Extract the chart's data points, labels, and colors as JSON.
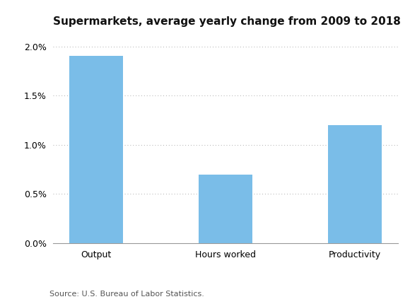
{
  "title": "Supermarkets, average yearly change from 2009 to 2018",
  "categories": [
    "Output",
    "Hours worked",
    "Productivity"
  ],
  "values": [
    0.019,
    0.007,
    0.012
  ],
  "bar_color": "#7ABDE8",
  "ylim": [
    0,
    0.021
  ],
  "yticks": [
    0.0,
    0.005,
    0.01,
    0.015,
    0.02
  ],
  "source_text": "Source: U.S. Bureau of Labor Statistics.",
  "background_color": "#ffffff",
  "title_fontsize": 11,
  "tick_fontsize": 9,
  "source_fontsize": 8,
  "fig_width": 5.8,
  "fig_height": 4.3,
  "dpi": 100
}
